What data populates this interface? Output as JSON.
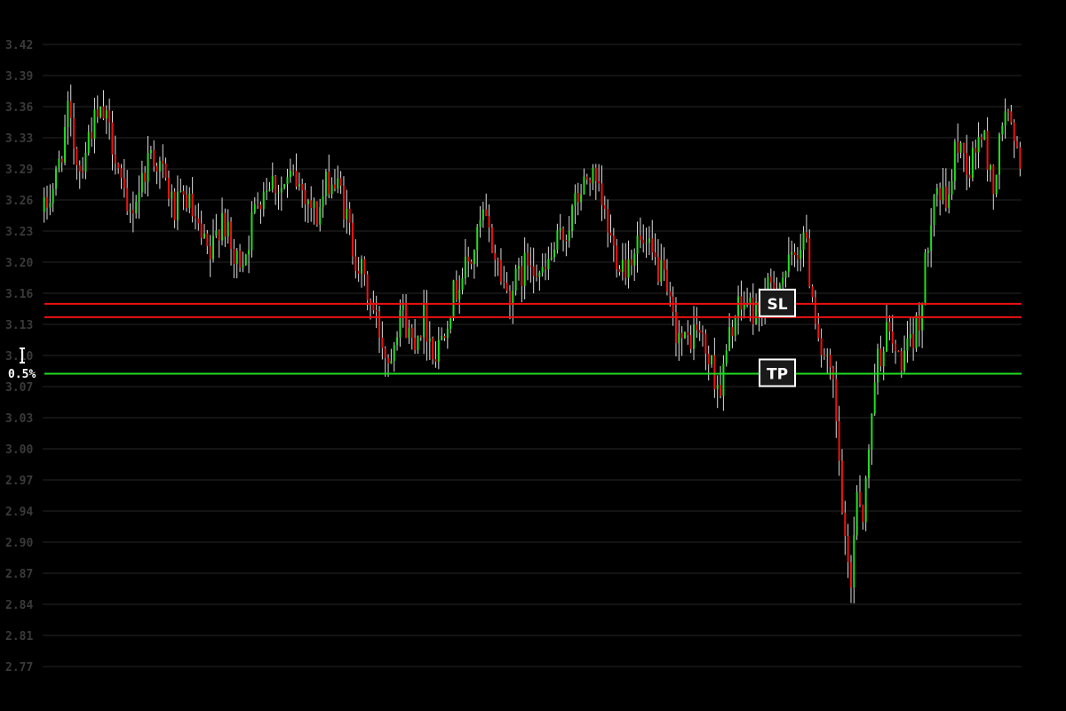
{
  "chart_data": {
    "type": "candlestick",
    "title": "",
    "xlabel": "",
    "ylabel": "",
    "ylim": [
      2.755,
      3.44
    ],
    "y_ticks": [
      "3.42",
      "3.39",
      "3.36",
      "3.33",
      "3.29",
      "3.26",
      "3.23",
      "3.20",
      "3.16",
      "3.13",
      "3.10",
      "3.07",
      "3.03",
      "3.00",
      "2.97",
      "2.94",
      "2.90",
      "2.87",
      "2.84",
      "2.81",
      "2.77"
    ],
    "grid": true,
    "candle_count": 330,
    "price_path": [
      [
        0,
        3.245
      ],
      [
        4,
        3.28
      ],
      [
        8,
        3.345
      ],
      [
        12,
        3.29
      ],
      [
        16,
        3.335
      ],
      [
        20,
        3.345
      ],
      [
        24,
        3.31
      ],
      [
        28,
        3.235
      ],
      [
        32,
        3.27
      ],
      [
        36,
        3.31
      ],
      [
        40,
        3.285
      ],
      [
        44,
        3.245
      ],
      [
        48,
        3.26
      ],
      [
        52,
        3.22
      ],
      [
        56,
        3.195
      ],
      [
        60,
        3.245
      ],
      [
        64,
        3.19
      ],
      [
        68,
        3.205
      ],
      [
        72,
        3.26
      ],
      [
        76,
        3.28
      ],
      [
        80,
        3.27
      ],
      [
        84,
        3.28
      ],
      [
        88,
        3.265
      ],
      [
        92,
        3.24
      ],
      [
        96,
        3.28
      ],
      [
        100,
        3.265
      ],
      [
        104,
        3.21
      ],
      [
        108,
        3.17
      ],
      [
        112,
        3.13
      ],
      [
        116,
        3.09
      ],
      [
        120,
        3.145
      ],
      [
        124,
        3.11
      ],
      [
        128,
        3.135
      ],
      [
        132,
        3.095
      ],
      [
        136,
        3.14
      ],
      [
        140,
        3.175
      ],
      [
        144,
        3.195
      ],
      [
        148,
        3.24
      ],
      [
        152,
        3.2
      ],
      [
        156,
        3.16
      ],
      [
        160,
        3.175
      ],
      [
        164,
        3.2
      ],
      [
        168,
        3.175
      ],
      [
        172,
        3.205
      ],
      [
        176,
        3.225
      ],
      [
        180,
        3.26
      ],
      [
        184,
        3.285
      ],
      [
        188,
        3.25
      ],
      [
        192,
        3.205
      ],
      [
        196,
        3.19
      ],
      [
        200,
        3.215
      ],
      [
        204,
        3.2
      ],
      [
        208,
        3.18
      ],
      [
        212,
        3.13
      ],
      [
        216,
        3.105
      ],
      [
        220,
        3.125
      ],
      [
        224,
        3.09
      ],
      [
        228,
        3.06
      ],
      [
        232,
        3.13
      ],
      [
        236,
        3.15
      ],
      [
        240,
        3.14
      ],
      [
        244,
        3.16
      ],
      [
        248,
        3.175
      ],
      [
        252,
        3.19
      ],
      [
        256,
        3.225
      ],
      [
        258,
        3.18
      ],
      [
        262,
        3.1
      ],
      [
        266,
        3.06
      ],
      [
        268,
        2.98
      ],
      [
        270,
        2.89
      ],
      [
        272,
        2.86
      ],
      [
        274,
        2.96
      ],
      [
        276,
        2.93
      ],
      [
        278,
        2.99
      ],
      [
        280,
        3.08
      ],
      [
        284,
        3.12
      ],
      [
        288,
        3.09
      ],
      [
        292,
        3.1
      ],
      [
        296,
        3.15
      ],
      [
        298,
        3.22
      ],
      [
        300,
        3.275
      ],
      [
        304,
        3.25
      ],
      [
        308,
        3.32
      ],
      [
        312,
        3.29
      ],
      [
        316,
        3.33
      ],
      [
        320,
        3.27
      ],
      [
        324,
        3.355
      ],
      [
        328,
        3.3
      ]
    ],
    "series": [
      {
        "name": "SL",
        "values": [
          3.149
        ]
      },
      {
        "name": "",
        "values": [
          3.135
        ]
      },
      {
        "name": "TP",
        "values": [
          3.076
        ]
      }
    ],
    "colors": {
      "up": "#22dd22",
      "down": "#ee1111",
      "wick": "#dddddd",
      "sl": "#ee1111",
      "tp": "#22dd22",
      "grid": "#262626",
      "tick": "#3a3a3a",
      "background": "#000000"
    },
    "labels": {
      "sl": "SL",
      "tp": "TP",
      "percent": "0.5%"
    }
  }
}
